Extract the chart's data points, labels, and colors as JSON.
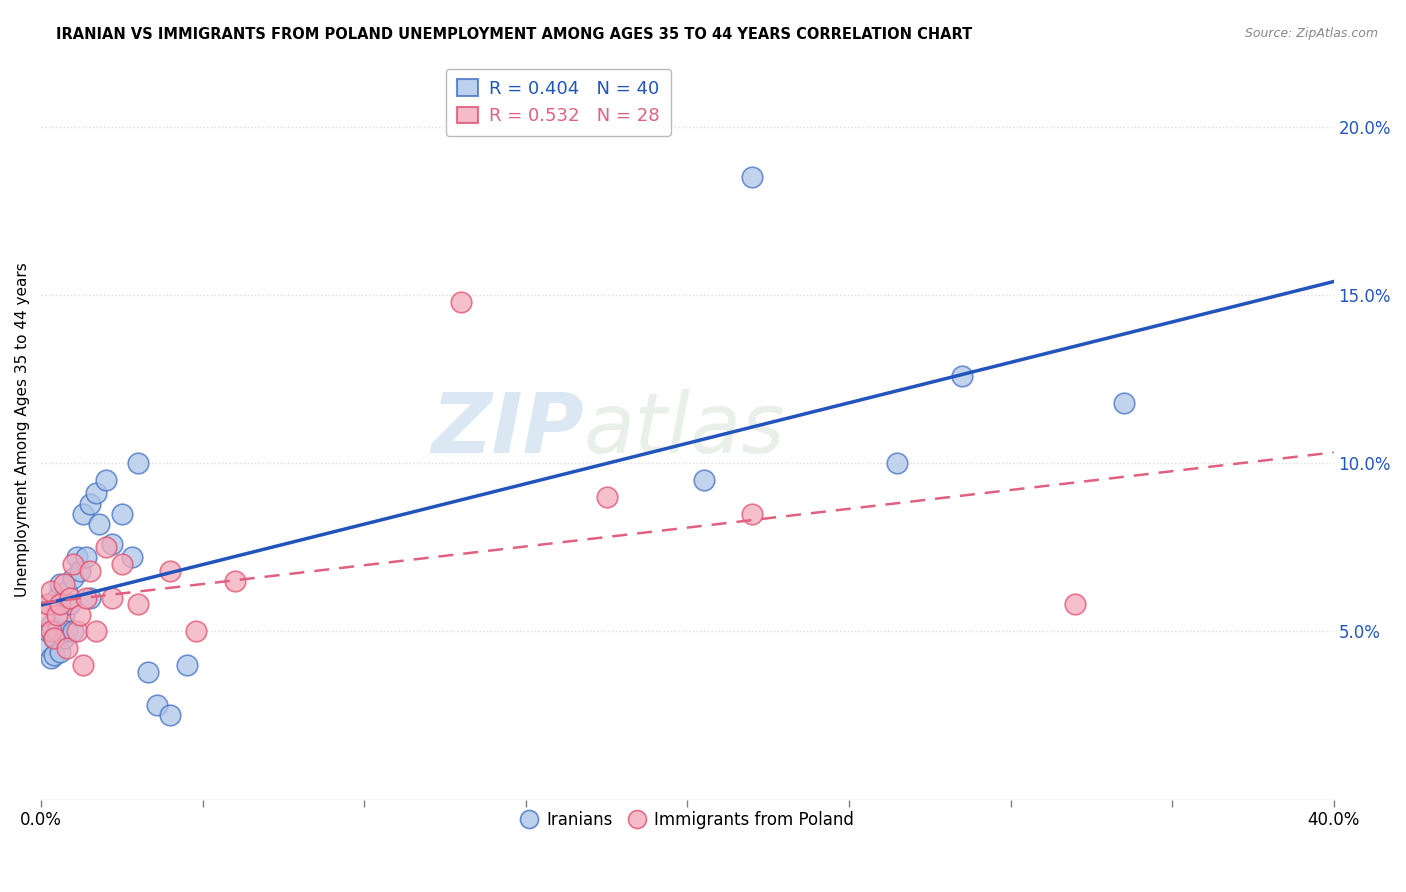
{
  "title": "IRANIAN VS IMMIGRANTS FROM POLAND UNEMPLOYMENT AMONG AGES 35 TO 44 YEARS CORRELATION CHART",
  "source": "Source: ZipAtlas.com",
  "ylabel": "Unemployment Among Ages 35 to 44 years",
  "xlim": [
    0,
    0.4
  ],
  "ylim": [
    0,
    0.22
  ],
  "xticks": [
    0.0,
    0.05,
    0.1,
    0.15,
    0.2,
    0.25,
    0.3,
    0.35,
    0.4
  ],
  "xtick_labels_show": [
    "0.0%",
    "",
    "",
    "",
    "",
    "",
    "",
    "",
    "40.0%"
  ],
  "yticks": [
    0.05,
    0.1,
    0.15,
    0.2
  ],
  "ytick_labels": [
    "5.0%",
    "10.0%",
    "15.0%",
    "20.0%"
  ],
  "watermark_zip": "ZIP",
  "watermark_atlas": "atlas",
  "legend_blue_r": "0.404",
  "legend_blue_n": "40",
  "legend_pink_r": "0.532",
  "legend_pink_n": "28",
  "legend_label_blue": "Iranians",
  "legend_label_pink": "Immigrants from Poland",
  "blue_color": "#AEC6E8",
  "pink_color": "#F4AABB",
  "blue_edge_color": "#4472C4",
  "pink_edge_color": "#E05070",
  "blue_line_color": "#2255BB",
  "pink_line_color": "#E06080",
  "background_color": "#ffffff",
  "grid_color": "#dddddd",
  "iranians_x": [
    0.001,
    0.002,
    0.002,
    0.003,
    0.003,
    0.004,
    0.004,
    0.005,
    0.005,
    0.006,
    0.006,
    0.007,
    0.007,
    0.008,
    0.008,
    0.009,
    0.01,
    0.01,
    0.011,
    0.012,
    0.013,
    0.014,
    0.015,
    0.015,
    0.017,
    0.018,
    0.02,
    0.022,
    0.025,
    0.028,
    0.03,
    0.033,
    0.036,
    0.04,
    0.045,
    0.205,
    0.22,
    0.265,
    0.285,
    0.335
  ],
  "iranians_y": [
    0.046,
    0.058,
    0.05,
    0.042,
    0.052,
    0.048,
    0.043,
    0.06,
    0.05,
    0.064,
    0.044,
    0.055,
    0.048,
    0.062,
    0.05,
    0.058,
    0.066,
    0.05,
    0.072,
    0.068,
    0.085,
    0.072,
    0.088,
    0.06,
    0.091,
    0.082,
    0.095,
    0.076,
    0.085,
    0.072,
    0.1,
    0.038,
    0.028,
    0.025,
    0.04,
    0.095,
    0.185,
    0.1,
    0.126,
    0.118
  ],
  "poland_x": [
    0.001,
    0.002,
    0.003,
    0.003,
    0.004,
    0.005,
    0.006,
    0.007,
    0.008,
    0.009,
    0.01,
    0.011,
    0.012,
    0.013,
    0.014,
    0.015,
    0.017,
    0.02,
    0.022,
    0.025,
    0.03,
    0.04,
    0.048,
    0.06,
    0.13,
    0.175,
    0.22,
    0.32
  ],
  "poland_y": [
    0.055,
    0.058,
    0.05,
    0.062,
    0.048,
    0.055,
    0.058,
    0.064,
    0.045,
    0.06,
    0.07,
    0.05,
    0.055,
    0.04,
    0.06,
    0.068,
    0.05,
    0.075,
    0.06,
    0.07,
    0.058,
    0.068,
    0.05,
    0.065,
    0.148,
    0.09,
    0.085,
    0.058
  ]
}
